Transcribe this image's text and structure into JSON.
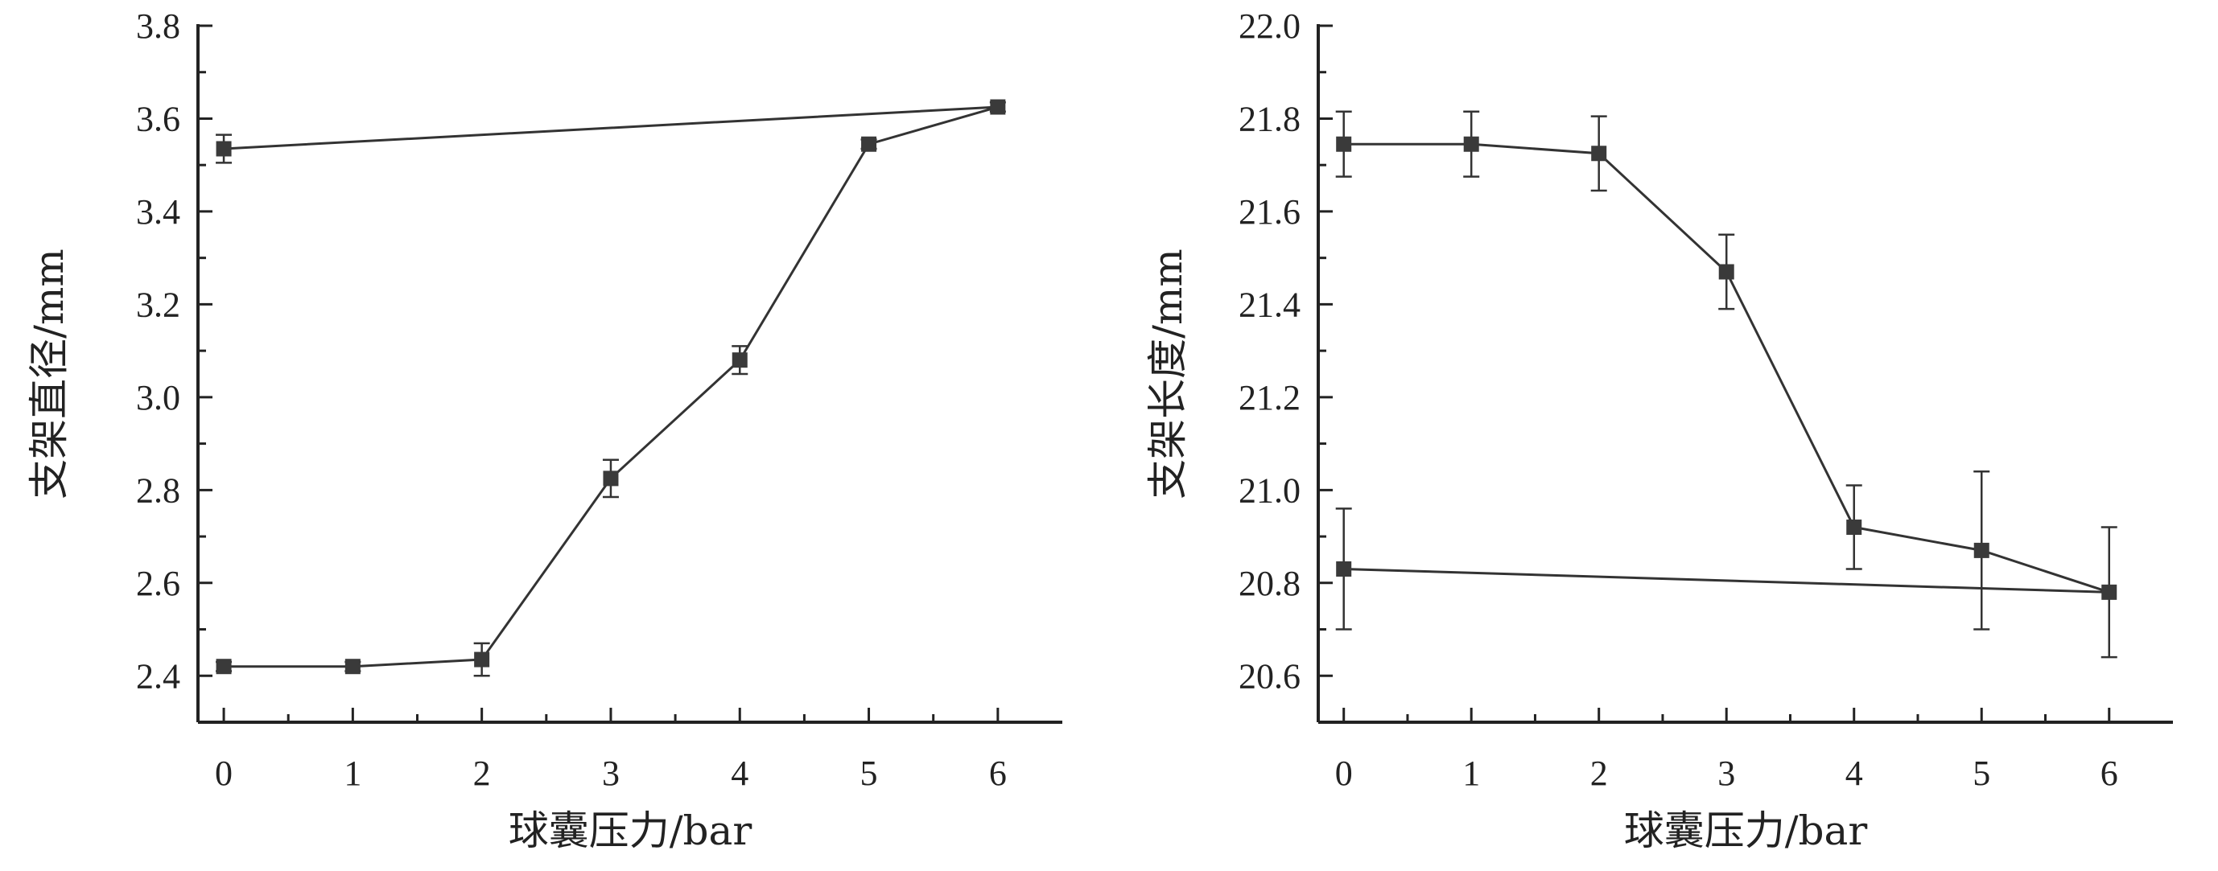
{
  "chart_data": [
    {
      "type": "line",
      "xlabel": "球囊压力/bar",
      "ylabel": "支架直径/mm",
      "xlim": [
        -0.2,
        6.5
      ],
      "ylim": [
        2.3,
        3.8
      ],
      "x_ticks": [
        0,
        1,
        2,
        3,
        4,
        5,
        6
      ],
      "y_ticks": [
        2.4,
        2.6,
        2.8,
        3.0,
        3.2,
        3.4,
        3.6,
        3.8
      ],
      "grid": false,
      "series": [
        {
          "points": [
            {
              "x": 0,
              "y": 2.42,
              "err": 0.01
            },
            {
              "x": 1,
              "y": 2.42,
              "err": 0.01
            },
            {
              "x": 2,
              "y": 2.435,
              "err": 0.035
            },
            {
              "x": 3,
              "y": 2.825,
              "err": 0.04
            },
            {
              "x": 4,
              "y": 3.08,
              "err": 0.03
            },
            {
              "x": 5,
              "y": 3.545,
              "err": 0.01
            },
            {
              "x": 6,
              "y": 3.625,
              "err": 0.01
            },
            {
              "x": 0,
              "y": 3.535,
              "err": 0.03
            }
          ]
        }
      ]
    },
    {
      "type": "line",
      "xlabel": "球囊压力/bar",
      "ylabel": "支架长度/mm",
      "xlim": [
        -0.2,
        6.5
      ],
      "ylim": [
        20.5,
        22.0
      ],
      "x_ticks": [
        0,
        1,
        2,
        3,
        4,
        5,
        6
      ],
      "y_ticks": [
        20.6,
        20.8,
        21.0,
        21.2,
        21.4,
        21.6,
        21.8,
        22.0
      ],
      "grid": false,
      "series": [
        {
          "points": [
            {
              "x": 0,
              "y": 21.745,
              "err": 0.07
            },
            {
              "x": 1,
              "y": 21.745,
              "err": 0.07
            },
            {
              "x": 2,
              "y": 21.725,
              "err": 0.08
            },
            {
              "x": 3,
              "y": 21.47,
              "err": 0.08
            },
            {
              "x": 4,
              "y": 20.92,
              "err": 0.09
            },
            {
              "x": 5,
              "y": 20.87,
              "err": 0.17
            },
            {
              "x": 6,
              "y": 20.78,
              "err": 0.14
            },
            {
              "x": 0,
              "y": 20.83,
              "err": 0.13
            }
          ]
        }
      ]
    }
  ],
  "colors": {
    "line": "#333333",
    "marker": "#3a3a3a",
    "axis": "#222222"
  }
}
